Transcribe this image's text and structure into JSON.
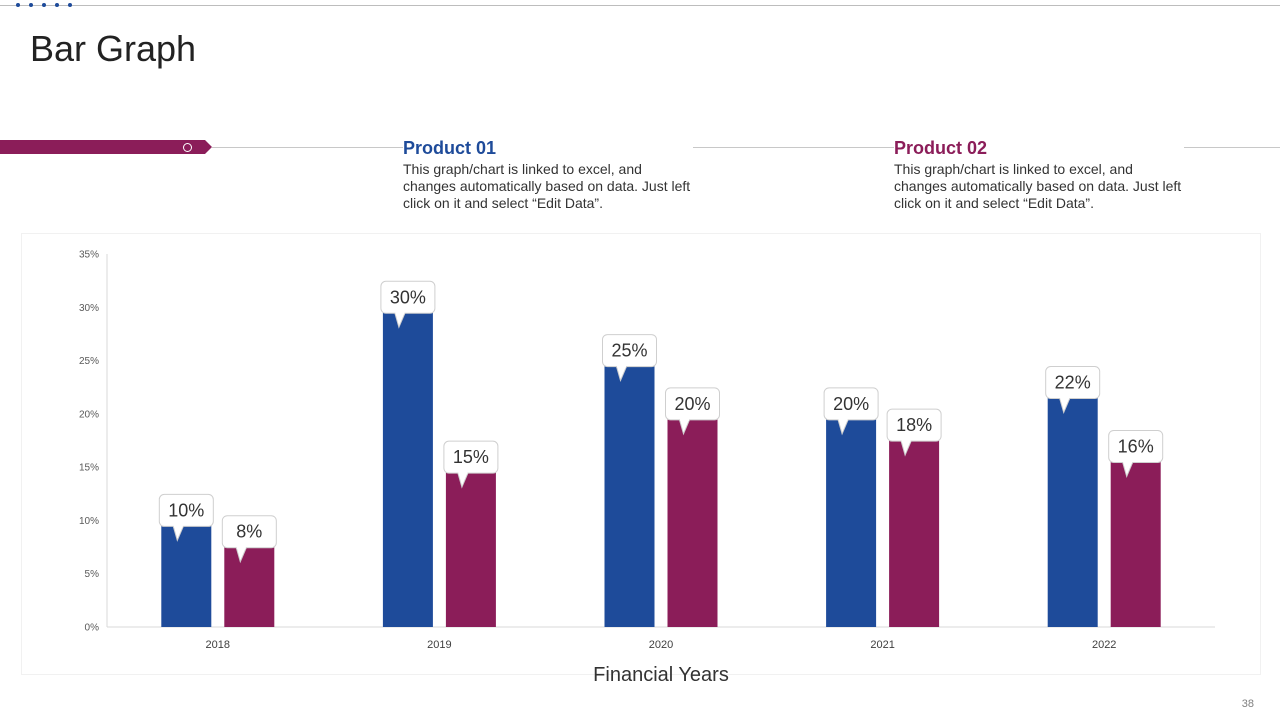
{
  "slide": {
    "title": "Bar Graph",
    "page_number": "38"
  },
  "legend": [
    {
      "name": "Product 01",
      "description": "This graph/chart is linked to excel, and changes automatically based on data. Just left click on it and select “Edit Data”.",
      "color": "#1e4b9a"
    },
    {
      "name": "Product 02",
      "description": "This graph/chart is linked to excel, and changes automatically based on data. Just left click on it and select “Edit Data”.",
      "color": "#8b1d59"
    }
  ],
  "chart_data": {
    "type": "bar",
    "categories": [
      "2018",
      "2019",
      "2020",
      "2021",
      "2022"
    ],
    "series": [
      {
        "name": "Product 01",
        "values": [
          10,
          30,
          25,
          20,
          22
        ],
        "color": "#1e4b9a"
      },
      {
        "name": "Product 02",
        "values": [
          8,
          15,
          20,
          18,
          16
        ],
        "color": "#8b1d59"
      }
    ],
    "data_labels": true,
    "value_suffix": "%",
    "title": "",
    "xlabel": "Financial Years",
    "ylabel": "",
    "ylim": [
      0,
      35
    ],
    "yticks": [
      0,
      5,
      10,
      15,
      20,
      25,
      30,
      35
    ],
    "ytick_labels": [
      "0%",
      "5%",
      "10%",
      "15%",
      "20%",
      "25%",
      "30%",
      "35%"
    ],
    "grid": false,
    "legend_position": "top"
  }
}
